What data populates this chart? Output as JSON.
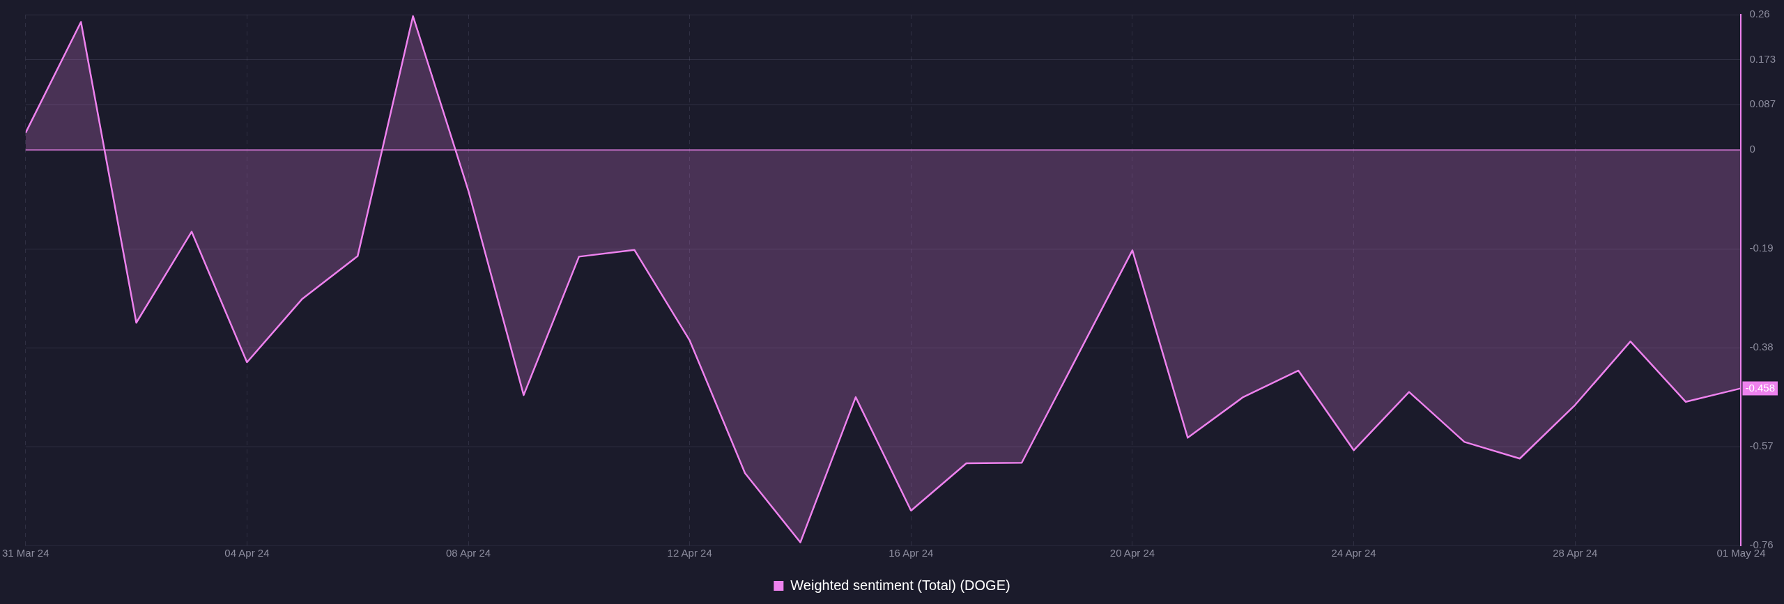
{
  "chart_data": {
    "type": "area",
    "x": [
      "--03-31",
      "--04-01",
      "--04-02",
      "--04-03",
      "--04-04",
      "--04-05",
      "--04-06",
      "--04-07",
      "--04-08",
      "--04-09",
      "--04-10",
      "--04-11",
      "--04-12",
      "--04-13",
      "--04-14",
      "--04-15",
      "--04-16",
      "--04-17",
      "--04-18",
      "--04-19",
      "--04-20",
      "--04-21",
      "--04-22",
      "--04-23",
      "--04-24",
      "--04-25",
      "--04-26",
      "--04-27",
      "--04-28",
      "--04-29",
      "--04-30",
      "--05-01"
    ],
    "series": [
      {
        "name": "Weighted sentiment (Total) (DOGE)",
        "color": "#ee82ee",
        "values": [
          0.033,
          0.246,
          -0.332,
          -0.157,
          -0.408,
          -0.286,
          -0.204,
          0.257,
          -0.078,
          -0.471,
          -0.205,
          -0.192,
          -0.366,
          -0.621,
          -0.754,
          -0.475,
          -0.693,
          -0.602,
          -0.601,
          -0.397,
          -0.193,
          -0.553,
          -0.475,
          -0.424,
          -0.577,
          -0.465,
          -0.561,
          -0.593,
          -0.49,
          -0.368,
          -0.484,
          -0.458
        ]
      }
    ],
    "xlim": [
      "--03-31",
      "--05-01"
    ],
    "xticks": [
      {
        "value": "--03-31",
        "label": "31 Mar 24"
      },
      {
        "value": "--04-04",
        "label": "04 Apr 24"
      },
      {
        "value": "--04-08",
        "label": "08 Apr 24"
      },
      {
        "value": "--04-12",
        "label": "12 Apr 24"
      },
      {
        "value": "--04-16",
        "label": "16 Apr 24"
      },
      {
        "value": "--04-20",
        "label": "20 Apr 24"
      },
      {
        "value": "--04-24",
        "label": "24 Apr 24"
      },
      {
        "value": "--04-28",
        "label": "28 Apr 24"
      },
      {
        "value": "--05-01",
        "label": "01 May 24"
      }
    ],
    "ylim": [
      -0.76,
      0.26
    ],
    "yticks": [
      0.26,
      0.173,
      0.087,
      0,
      -0.19,
      -0.38,
      -0.57,
      -0.76
    ],
    "annotations": [
      {
        "text": "-0.458",
        "x": "--05-01",
        "y": -0.458
      }
    ],
    "ref_lines": [
      {
        "axis": "y",
        "value": 0,
        "color": "#ee82ee"
      }
    ],
    "grid": true,
    "legend": "bottom"
  }
}
